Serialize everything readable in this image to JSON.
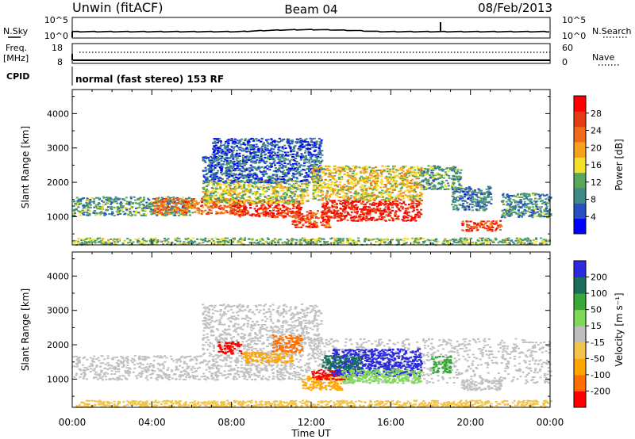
{
  "header": {
    "station": "Unwin (fitACF)",
    "beam": "Beam 04",
    "date": "08/Feb/2013"
  },
  "noise_panel": {
    "left_label": "N.Sky",
    "right_label": "N.Search",
    "left_ticks": [
      "10^5",
      "10^0"
    ],
    "right_ticks": [
      "10^5",
      "10^0"
    ]
  },
  "freq_panel": {
    "left_label_1": "Freq.",
    "left_label_2": "[MHz]",
    "right_label": "Nave",
    "left_ticks": [
      "18",
      "8"
    ],
    "right_ticks": [
      "60",
      "0"
    ]
  },
  "cpid": {
    "label": "CPID",
    "text": "normal (fast stereo) 153 RF"
  },
  "colors": {
    "power_scale": [
      "#0000ff",
      "#2a4fc0",
      "#3f8a86",
      "#5aa65a",
      "#f2e02a",
      "#f5a21c",
      "#f26a1c",
      "#e63a14",
      "#ff0000"
    ],
    "velocity_scale": [
      "#ff0000",
      "#ff7000",
      "#ffa500",
      "#f3c34a",
      "#bebebe",
      "#7ed957",
      "#38a838",
      "#1a6f5a",
      "#2b2bdd"
    ],
    "gray_scatter": "#c0c0c0"
  },
  "chart_data": [
    {
      "type": "heatmap",
      "title": "",
      "ylabel": "Slant Range [km]",
      "xlabel": "Time UT",
      "xlim_hours": [
        0,
        24
      ],
      "ylim_km": [
        180,
        4700
      ],
      "y_ticks": [
        "1000",
        "2000",
        "3000",
        "4000"
      ],
      "x_ticks": [
        "00:00",
        "04:00",
        "08:00",
        "12:00",
        "16:00",
        "20:00",
        "00:00"
      ],
      "colorbar": {
        "label": "Power [dB]",
        "ticks": [
          "4",
          "8",
          "12",
          "16",
          "20",
          "24",
          "28"
        ],
        "range": [
          0,
          30
        ]
      }
    },
    {
      "type": "heatmap",
      "title": "",
      "ylabel": "Slant Range [km]",
      "xlabel": "Time UT",
      "xlim_hours": [
        0,
        24
      ],
      "ylim_km": [
        180,
        4700
      ],
      "y_ticks": [
        "1000",
        "2000",
        "3000",
        "4000"
      ],
      "x_ticks": [
        "00:00",
        "04:00",
        "08:00",
        "12:00",
        "16:00",
        "20:00",
        "00:00"
      ],
      "colorbar": {
        "label": "Velocity [m s⁻¹]",
        "ticks": [
          "200",
          "100",
          "50",
          "15",
          "-15",
          "-50",
          "-100",
          "-200"
        ],
        "range": [
          -250,
          250
        ]
      }
    }
  ],
  "xaxis": {
    "title": "Time UT",
    "ticks": [
      "00:00",
      "04:00",
      "08:00",
      "12:00",
      "16:00",
      "20:00",
      "00:00"
    ]
  }
}
